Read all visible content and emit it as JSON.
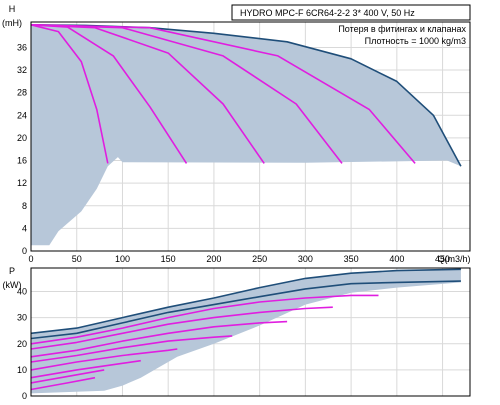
{
  "colors": {
    "grid": "#d9d9d9",
    "area": "#b7c7d9",
    "head_curve": "#1f4e79",
    "system_curve": "#e01ee0",
    "frame": "#000000"
  },
  "chart_data": [
    {
      "type": "area",
      "id": "head",
      "title_lines": [
        "HYDRO MPC-F 6CR64-2-2   3* 400 V, 50 Hz",
        "Потеря в фитингах и клапанах",
        "Плотность = 1000 kg/m3"
      ],
      "ylabel_lines": [
        "H",
        "(mH)"
      ],
      "xlabel": "Q(m3/h)",
      "xlim": [
        0,
        480
      ],
      "ylim": [
        0,
        40.5
      ],
      "xticks": [
        0,
        50,
        100,
        150,
        200,
        250,
        300,
        350,
        400,
        450
      ],
      "yticks": [
        0,
        4,
        8,
        12,
        16,
        20,
        24,
        28,
        32,
        36
      ],
      "grid": true,
      "operating_area": [
        [
          0,
          40
        ],
        [
          60,
          39.9
        ],
        [
          130,
          39.5
        ],
        [
          200,
          38.5
        ],
        [
          280,
          37
        ],
        [
          350,
          34
        ],
        [
          400,
          30
        ],
        [
          440,
          24
        ],
        [
          470,
          15
        ],
        [
          455,
          16
        ],
        [
          300,
          15.6
        ],
        [
          100,
          15.7
        ],
        [
          95,
          16.6
        ],
        [
          84,
          15
        ],
        [
          72,
          11
        ],
        [
          55,
          7
        ],
        [
          30,
          3.5
        ],
        [
          20,
          1
        ],
        [
          0,
          1
        ]
      ],
      "series": [
        {
          "role": "max-curve",
          "x": [
            0,
            60,
            130,
            200,
            280,
            350,
            400,
            440,
            470
          ],
          "y": [
            40,
            39.9,
            39.5,
            38.5,
            37,
            34,
            30,
            24,
            15
          ]
        },
        {
          "role": "system",
          "x": [
            0,
            30,
            55,
            72,
            84
          ],
          "y": [
            40,
            38.8,
            33.5,
            25,
            15.5
          ]
        },
        {
          "role": "system",
          "x": [
            0,
            40,
            90,
            130,
            170
          ],
          "y": [
            40,
            39.6,
            34.5,
            25.5,
            15.5
          ]
        },
        {
          "role": "system",
          "x": [
            0,
            70,
            150,
            210,
            255
          ],
          "y": [
            40,
            39.5,
            35,
            26,
            15.5
          ]
        },
        {
          "role": "system",
          "x": [
            0,
            100,
            210,
            290,
            340
          ],
          "y": [
            40,
            39.5,
            34.5,
            26,
            15.5
          ]
        },
        {
          "role": "system",
          "x": [
            0,
            130,
            270,
            370,
            420
          ],
          "y": [
            40,
            39.5,
            34.5,
            25,
            15.5
          ]
        }
      ]
    },
    {
      "type": "area",
      "id": "power",
      "ylabel_lines": [
        "P",
        "(kW)"
      ],
      "xlim": [
        0,
        480
      ],
      "ylim": [
        0,
        49
      ],
      "yticks": [
        0,
        10,
        20,
        30,
        40
      ],
      "grid": true,
      "operating_area": [
        [
          0,
          24
        ],
        [
          50,
          26
        ],
        [
          100,
          30
        ],
        [
          150,
          34
        ],
        [
          200,
          37.5
        ],
        [
          250,
          41.5
        ],
        [
          300,
          45
        ],
        [
          350,
          47
        ],
        [
          400,
          48
        ],
        [
          470,
          48.5
        ],
        [
          470,
          43.5
        ],
        [
          400,
          41.5
        ],
        [
          350,
          39.5
        ],
        [
          300,
          35
        ],
        [
          250,
          27
        ],
        [
          200,
          20
        ],
        [
          160,
          15
        ],
        [
          140,
          11
        ],
        [
          120,
          7
        ],
        [
          100,
          4
        ],
        [
          80,
          2
        ],
        [
          0,
          1
        ]
      ],
      "series": [
        {
          "role": "max-curve",
          "x": [
            0,
            50,
            100,
            150,
            200,
            250,
            300,
            350,
            400,
            470
          ],
          "y": [
            24,
            26,
            30,
            34,
            37.5,
            41.5,
            45,
            47,
            48,
            48.5
          ]
        },
        {
          "role": "max-curve",
          "x": [
            0,
            50,
            100,
            150,
            200,
            250,
            300,
            350,
            400,
            470
          ],
          "y": [
            22,
            24,
            28,
            32,
            35,
            38,
            41,
            43,
            43.5,
            44
          ]
        },
        {
          "role": "system",
          "x": [
            0,
            50,
            100,
            150,
            200,
            250,
            300,
            350,
            380
          ],
          "y": [
            20,
            22.5,
            26,
            30,
            33.5,
            36,
            37.5,
            38.5,
            38.5
          ]
        },
        {
          "role": "system",
          "x": [
            0,
            50,
            100,
            150,
            200,
            250,
            300,
            330
          ],
          "y": [
            18,
            20.5,
            24,
            27.5,
            30,
            32,
            33.5,
            34
          ]
        },
        {
          "role": "system",
          "x": [
            0,
            50,
            100,
            150,
            200,
            250,
            280
          ],
          "y": [
            15,
            17.5,
            21,
            24,
            26.5,
            28,
            28.5
          ]
        },
        {
          "role": "system",
          "x": [
            0,
            50,
            100,
            150,
            200,
            220
          ],
          "y": [
            13,
            15.5,
            18.5,
            21,
            22.5,
            23
          ]
        },
        {
          "role": "system",
          "x": [
            0,
            50,
            100,
            150,
            160
          ],
          "y": [
            10,
            13,
            15.5,
            17.5,
            18
          ]
        },
        {
          "role": "system",
          "x": [
            0,
            50,
            100,
            120
          ],
          "y": [
            7,
            10,
            12.5,
            13.5
          ]
        },
        {
          "role": "system",
          "x": [
            0,
            40,
            80
          ],
          "y": [
            5,
            7.5,
            10
          ]
        },
        {
          "role": "system",
          "x": [
            0,
            40,
            70
          ],
          "y": [
            2.5,
            5,
            7
          ]
        }
      ]
    }
  ]
}
